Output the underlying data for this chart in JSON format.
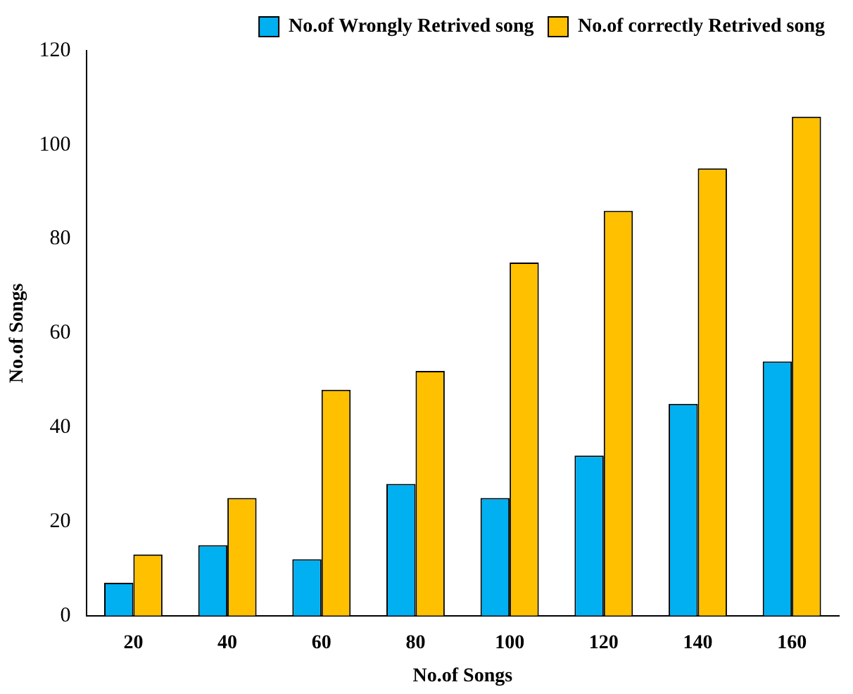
{
  "chart_data": {
    "type": "bar",
    "xlabel": "No.of Songs",
    "ylabel": "No.of Songs",
    "categories": [
      "20",
      "40",
      "60",
      "80",
      "100",
      "120",
      "140",
      "160"
    ],
    "series": [
      {
        "name": "No.of Wrongly Retrived song",
        "color": "#00b0f0",
        "values": [
          7,
          15,
          12,
          28,
          25,
          34,
          45,
          54
        ]
      },
      {
        "name": "No.of correctly Retrived song",
        "color": "#ffc000",
        "values": [
          13,
          25,
          48,
          52,
          75,
          86,
          95,
          106
        ]
      }
    ],
    "ylim": [
      0,
      120
    ],
    "yticks": [
      0,
      20,
      40,
      60,
      80,
      100,
      120
    ],
    "grid": false,
    "legend": "top"
  }
}
